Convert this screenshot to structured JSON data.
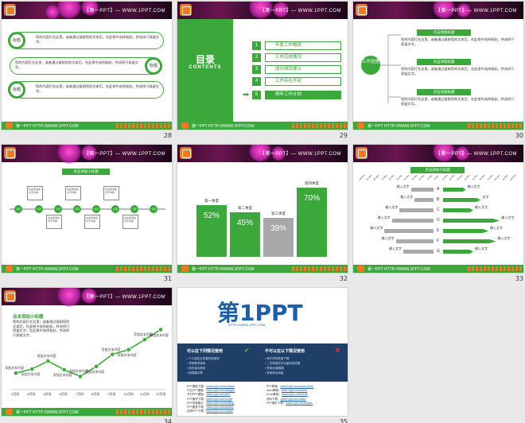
{
  "site_header": "【第一PPT】— WWW.1PPT.COM",
  "footer_url": "第一PPT  HTTP://WWW.1PPT.COM",
  "placeholder_text": "您的内容打在这里，或者通过复制您的文本后，在此框中选择粘贴，并选择只保留文字。",
  "slides": [
    {
      "num": "28"
    },
    {
      "num": "29"
    },
    {
      "num": "30"
    },
    {
      "num": "31"
    },
    {
      "num": "32"
    },
    {
      "num": "33"
    },
    {
      "num": "34"
    },
    {
      "num": "35"
    }
  ],
  "s28": {
    "label": "标题"
  },
  "s29": {
    "title": "目录",
    "subtitle": "CONTENTS",
    "items": [
      "年度工作概述",
      "工作完成情况",
      "成功项目展示",
      "工作存在不足",
      "明年工作计划"
    ]
  },
  "s30": {
    "center": "工作进度",
    "title_box": "点击添加标题"
  },
  "s31": {
    "title": "点击添加小标题",
    "node": "4.8",
    "card": "请这里添加文字内容"
  },
  "s32": {
    "chart_data": {
      "type": "bar",
      "categories": [
        "第一季度",
        "第二季度",
        "第三季度",
        "第四季度"
      ],
      "values": [
        52,
        45,
        39,
        70
      ],
      "value_labels": [
        "52%",
        "45%",
        "39%",
        "70%"
      ],
      "colors": [
        "#3ca83c",
        "#3ca83c",
        "#a8a8a8",
        "#3ca83c"
      ]
    }
  },
  "s33": {
    "title": "点击添加小标题",
    "axis_ticks": [
      "100.00%",
      "90.00%",
      "80.00%",
      "70.00%",
      "60.00%",
      "50.00%",
      "40.00%",
      "30.00%",
      "20.00%",
      "10.00%",
      "0.00%",
      "10.00%",
      "20.00%",
      "30.00%",
      "40.00%",
      "50.00%",
      "60.00%",
      "70.00%",
      "80.00%",
      "90.00%",
      "100.00%"
    ],
    "letters": [
      "A",
      "B",
      "C",
      "D",
      "E",
      "F",
      "G"
    ],
    "left_label": "输入文字",
    "right_label": "输入文字",
    "right_label_b": "文字",
    "chart_data": {
      "type": "bar",
      "categories": [
        "A",
        "B",
        "C",
        "D",
        "E",
        "F",
        "G"
      ],
      "series": [
        {
          "name": "left",
          "values": [
            0.3,
            0.25,
            0.45,
            0.55,
            0.65,
            0.5,
            0.4
          ]
        },
        {
          "name": "right",
          "values": [
            0.3,
            0.5,
            0.4,
            0.75,
            0.6,
            0.7,
            0.4
          ]
        }
      ]
    }
  },
  "s34": {
    "title": "点击添加小标题",
    "body": "您的内容打在这里，或者通过复制您的文本后，在此框中选择粘贴，并选择只保留文字。在此框中选择粘贴，并选择只保留文字。",
    "note": "添加文本内容",
    "chart_data": {
      "type": "line",
      "categories": [
        "2月份",
        "4月份",
        "5月份",
        "6月份",
        "7月份",
        "8月份",
        "9月份",
        "10月份",
        "11月份",
        "12月份"
      ],
      "values": [
        20,
        26,
        38,
        25,
        15,
        30,
        48,
        55,
        70,
        85
      ]
    }
  },
  "s35": {
    "logo": "第1PPT",
    "logo_sub": "HTTP://WWW.1PPT.COM",
    "can_title": "可以在下列情况使用",
    "cannot_title": "不可以在以下情况使用",
    "can_lines": [
      "• 个人或企业非营利性使用",
      "• 学校教学使用",
      "• 商业演示使用",
      "• 网络展示等"
    ],
    "cannot_lines": [
      "• 用于任何收费下载",
      "• 二次转载并作为营利性资源",
      "• 售卖/出租模板",
      "• 其他商业用途"
    ],
    "links": [
      [
        "PPT模板下载：",
        "www.1ppt.com/moban/"
      ],
      [
        "行业PPT模板：",
        "www.1ppt.com/hangye/"
      ],
      [
        "节日PPT模板：",
        "www.1ppt.com/jieri/"
      ],
      [
        "PPT素材下载：",
        "www.1ppt.com/sucai/"
      ],
      [
        "PPT背景图片：",
        "www.1ppt.com/beijing/"
      ],
      [
        "PPT图表下载：",
        "www.1ppt.com/tubiao/"
      ],
      [
        "优秀PPT下载：",
        "www.1ppt.com/xiazai/"
      ],
      [
        "PPT教程：",
        "www.1ppt.com/powerpoint/"
      ],
      [
        "Word教程：",
        "www.1ppt.com/word/"
      ],
      [
        "Excel教程：",
        "www.1ppt.com/excel/"
      ],
      [
        "资料下载：",
        "www.1ppt.com/ziliao/"
      ],
      [
        "PPT课件下载：",
        "www.1ppt.com/kejian/"
      ]
    ]
  }
}
